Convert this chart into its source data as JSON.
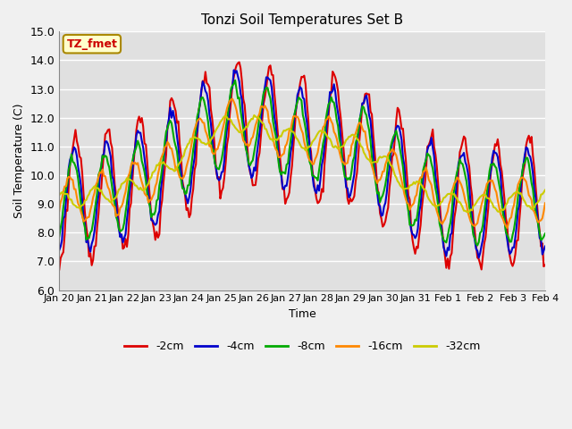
{
  "title": "Tonzi Soil Temperatures Set B",
  "xlabel": "Time",
  "ylabel": "Soil Temperature (C)",
  "ylim": [
    6.0,
    15.0
  ],
  "yticks": [
    6.0,
    7.0,
    8.0,
    9.0,
    10.0,
    11.0,
    12.0,
    13.0,
    14.0,
    15.0
  ],
  "xtick_labels": [
    "Jan 20",
    "Jan 21",
    "Jan 22",
    "Jan 23",
    "Jan 24",
    "Jan 25",
    "Jan 26",
    "Jan 27",
    "Jan 28",
    "Jan 29",
    "Jan 30",
    "Jan 31",
    "Feb 1",
    "Feb 2",
    "Feb 3",
    "Feb 4"
  ],
  "legend_labels": [
    "-2cm",
    "-4cm",
    "-8cm",
    "-16cm",
    "-32cm"
  ],
  "legend_colors": [
    "#dd0000",
    "#0000cc",
    "#00aa00",
    "#ff8800",
    "#cccc00"
  ],
  "annotation_text": "TZ_fmet",
  "annotation_fg": "#cc0000",
  "annotation_bg": "#ffffcc",
  "annotation_edge": "#aa8800",
  "plot_bg_color": "#e0e0e0",
  "fig_bg_color": "#f0f0f0",
  "grid_color": "#ffffff",
  "line_colors": [
    "#dd0000",
    "#0000cc",
    "#00aa00",
    "#ff8800",
    "#cccc00"
  ],
  "line_width": 1.5,
  "n_days": 15,
  "points_per_day": 24
}
